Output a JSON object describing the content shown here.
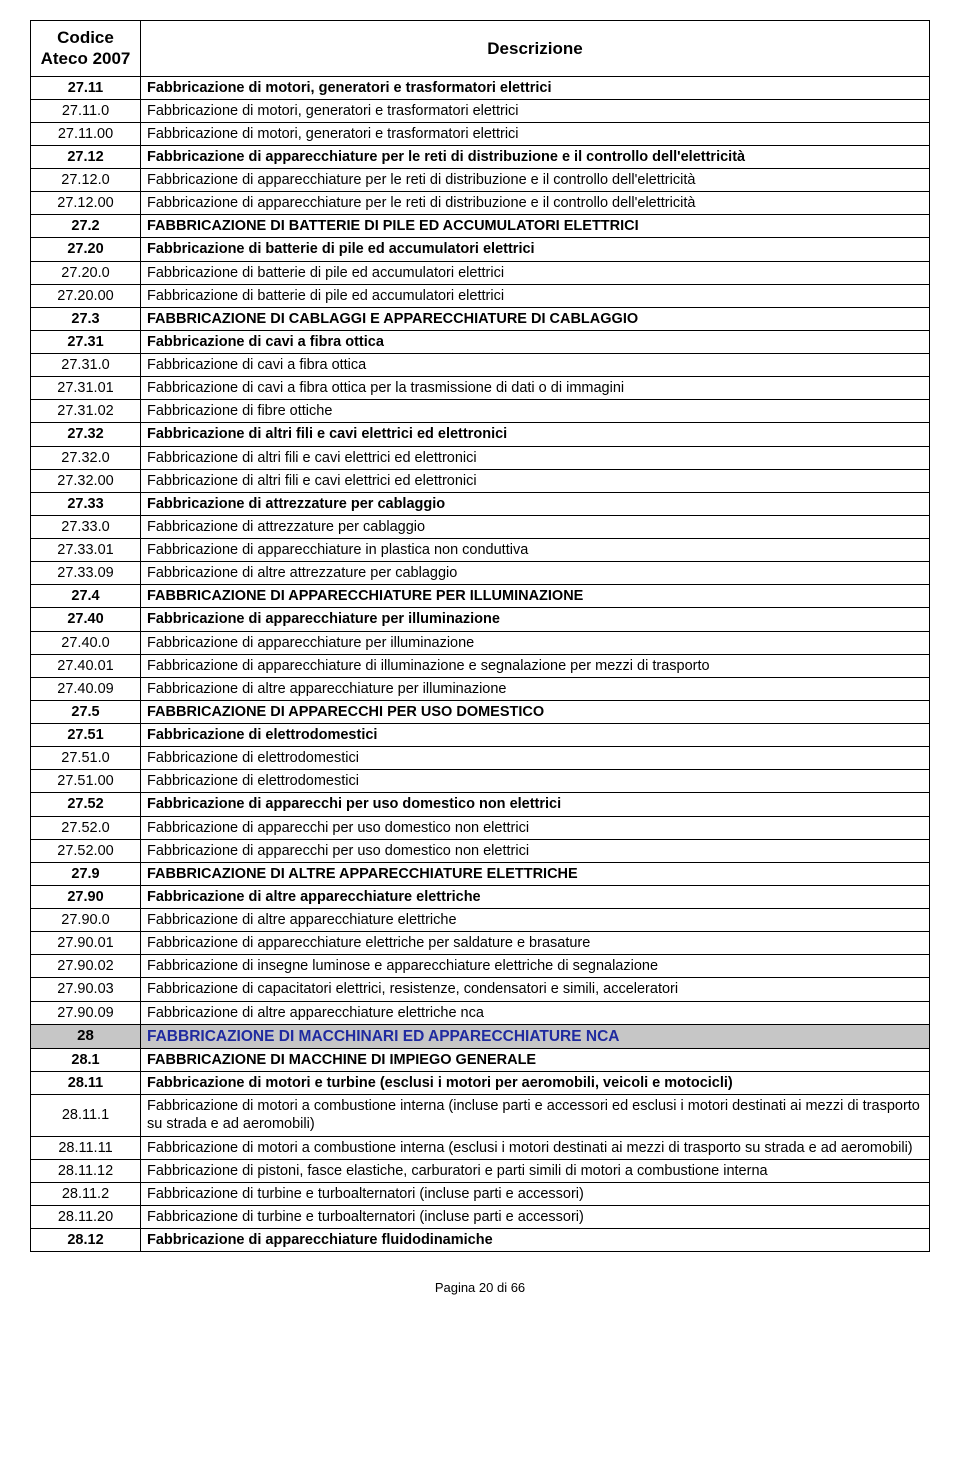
{
  "header": {
    "col1_line1": "Codice",
    "col1_line2": "Ateco 2007",
    "col2": "Descrizione"
  },
  "rows": [
    {
      "style": "bold",
      "code": "27.11",
      "desc": "Fabbricazione di motori, generatori e trasformatori elettrici"
    },
    {
      "style": "normal",
      "code": "27.11.0",
      "desc": "Fabbricazione di motori, generatori e trasformatori elettrici"
    },
    {
      "style": "normal",
      "code": "27.11.00",
      "desc": "Fabbricazione di motori, generatori e trasformatori elettrici"
    },
    {
      "style": "bold",
      "code": "27.12",
      "desc": "Fabbricazione di apparecchiature per le reti di distribuzione e il controllo dell'elettricità"
    },
    {
      "style": "normal",
      "code": "27.12.0",
      "desc": "Fabbricazione di apparecchiature per le reti di distribuzione e il controllo dell'elettricità"
    },
    {
      "style": "normal",
      "code": "27.12.00",
      "desc": "Fabbricazione di apparecchiature per le reti di distribuzione e il controllo dell'elettricità"
    },
    {
      "style": "bold",
      "code": "27.2",
      "desc": "FABBRICAZIONE DI BATTERIE DI PILE ED ACCUMULATORI ELETTRICI"
    },
    {
      "style": "bold",
      "code": "27.20",
      "desc": "Fabbricazione di batterie di pile ed accumulatori elettrici"
    },
    {
      "style": "normal",
      "code": "27.20.0",
      "desc": "Fabbricazione di batterie di pile ed accumulatori elettrici"
    },
    {
      "style": "normal",
      "code": "27.20.00",
      "desc": "Fabbricazione di batterie di pile ed accumulatori elettrici"
    },
    {
      "style": "bold",
      "code": "27.3",
      "desc": "FABBRICAZIONE DI CABLAGGI E APPARECCHIATURE DI CABLAGGIO"
    },
    {
      "style": "bold",
      "code": "27.31",
      "desc": "Fabbricazione di cavi a fibra ottica"
    },
    {
      "style": "normal",
      "code": "27.31.0",
      "desc": "Fabbricazione di cavi a fibra ottica"
    },
    {
      "style": "normal",
      "code": "27.31.01",
      "desc": "Fabbricazione di cavi a fibra ottica per la trasmissione di dati o di immagini"
    },
    {
      "style": "normal",
      "code": "27.31.02",
      "desc": "Fabbricazione di fibre ottiche"
    },
    {
      "style": "bold",
      "code": "27.32",
      "desc": "Fabbricazione di altri fili e cavi elettrici ed elettronici"
    },
    {
      "style": "normal",
      "code": "27.32.0",
      "desc": "Fabbricazione di altri fili e cavi elettrici ed elettronici"
    },
    {
      "style": "normal",
      "code": "27.32.00",
      "desc": "Fabbricazione di altri fili e cavi elettrici ed elettronici"
    },
    {
      "style": "bold",
      "code": "27.33",
      "desc": "Fabbricazione di attrezzature per cablaggio"
    },
    {
      "style": "normal",
      "code": "27.33.0",
      "desc": "Fabbricazione di attrezzature per cablaggio"
    },
    {
      "style": "normal",
      "code": "27.33.01",
      "desc": "Fabbricazione di apparecchiature in plastica non conduttiva"
    },
    {
      "style": "normal",
      "code": "27.33.09",
      "desc": "Fabbricazione di altre attrezzature per cablaggio"
    },
    {
      "style": "bold",
      "code": "27.4",
      "desc": "FABBRICAZIONE DI APPARECCHIATURE PER ILLUMINAZIONE"
    },
    {
      "style": "bold",
      "code": "27.40",
      "desc": "Fabbricazione di apparecchiature per illuminazione"
    },
    {
      "style": "normal",
      "code": "27.40.0",
      "desc": "Fabbricazione di apparecchiature per illuminazione"
    },
    {
      "style": "normal",
      "code": "27.40.01",
      "desc": "Fabbricazione di apparecchiature di illuminazione e segnalazione per mezzi di trasporto"
    },
    {
      "style": "normal",
      "code": "27.40.09",
      "desc": "Fabbricazione di altre apparecchiature per illuminazione"
    },
    {
      "style": "bold",
      "code": "27.5",
      "desc": "FABBRICAZIONE DI APPARECCHI PER USO DOMESTICO"
    },
    {
      "style": "bold",
      "code": "27.51",
      "desc": "Fabbricazione di elettrodomestici"
    },
    {
      "style": "normal",
      "code": "27.51.0",
      "desc": "Fabbricazione di elettrodomestici"
    },
    {
      "style": "normal",
      "code": "27.51.00",
      "desc": "Fabbricazione di elettrodomestici"
    },
    {
      "style": "bold",
      "code": "27.52",
      "desc": "Fabbricazione di apparecchi per uso domestico non elettrici"
    },
    {
      "style": "normal",
      "code": "27.52.0",
      "desc": "Fabbricazione di apparecchi per uso domestico non elettrici"
    },
    {
      "style": "normal",
      "code": "27.52.00",
      "desc": "Fabbricazione di apparecchi per uso domestico non elettrici"
    },
    {
      "style": "bold",
      "code": "27.9",
      "desc": "FABBRICAZIONE DI ALTRE APPARECCHIATURE ELETTRICHE"
    },
    {
      "style": "bold",
      "code": "27.90",
      "desc": "Fabbricazione di altre apparecchiature elettriche"
    },
    {
      "style": "normal",
      "code": "27.90.0",
      "desc": "Fabbricazione di altre apparecchiature elettriche"
    },
    {
      "style": "normal",
      "code": "27.90.01",
      "desc": "Fabbricazione di apparecchiature elettriche per saldature e brasature"
    },
    {
      "style": "normal",
      "code": "27.90.02",
      "desc": "Fabbricazione di insegne luminose e apparecchiature elettriche di segnalazione"
    },
    {
      "style": "normal",
      "code": "27.90.03",
      "desc": "Fabbricazione di capacitatori elettrici, resistenze, condensatori e simili, acceleratori"
    },
    {
      "style": "normal",
      "code": "27.90.09",
      "desc": "Fabbricazione di altre apparecchiature elettriche nca"
    },
    {
      "style": "section",
      "code": "28",
      "desc": "FABBRICAZIONE DI MACCHINARI ED APPARECCHIATURE NCA"
    },
    {
      "style": "bold",
      "code": "28.1",
      "desc": "FABBRICAZIONE DI MACCHINE DI IMPIEGO GENERALE"
    },
    {
      "style": "bold",
      "code": "28.11",
      "desc": "Fabbricazione di motori e turbine (esclusi i motori per aeromobili, veicoli e motocicli)"
    },
    {
      "style": "normal",
      "code": "28.11.1",
      "desc": "Fabbricazione di motori a combustione interna (incluse parti e accessori ed esclusi i motori destinati ai mezzi di trasporto su strada e ad aeromobili)"
    },
    {
      "style": "normal",
      "code": "28.11.11",
      "desc": "Fabbricazione di motori a combustione interna (esclusi i motori destinati ai mezzi di trasporto su strada e ad aeromobili)"
    },
    {
      "style": "normal",
      "code": "28.11.12",
      "desc": "Fabbricazione di pistoni, fasce elastiche, carburatori e parti simili di motori a combustione interna"
    },
    {
      "style": "normal",
      "code": "28.11.2",
      "desc": "Fabbricazione di turbine e turboalternatori (incluse parti e accessori)"
    },
    {
      "style": "normal",
      "code": "28.11.20",
      "desc": "Fabbricazione di turbine e turboalternatori (incluse parti e accessori)"
    },
    {
      "style": "bold",
      "code": "28.12",
      "desc": "Fabbricazione di apparecchiature fluidodinamiche"
    }
  ],
  "footer": "Pagina 20 di 66"
}
